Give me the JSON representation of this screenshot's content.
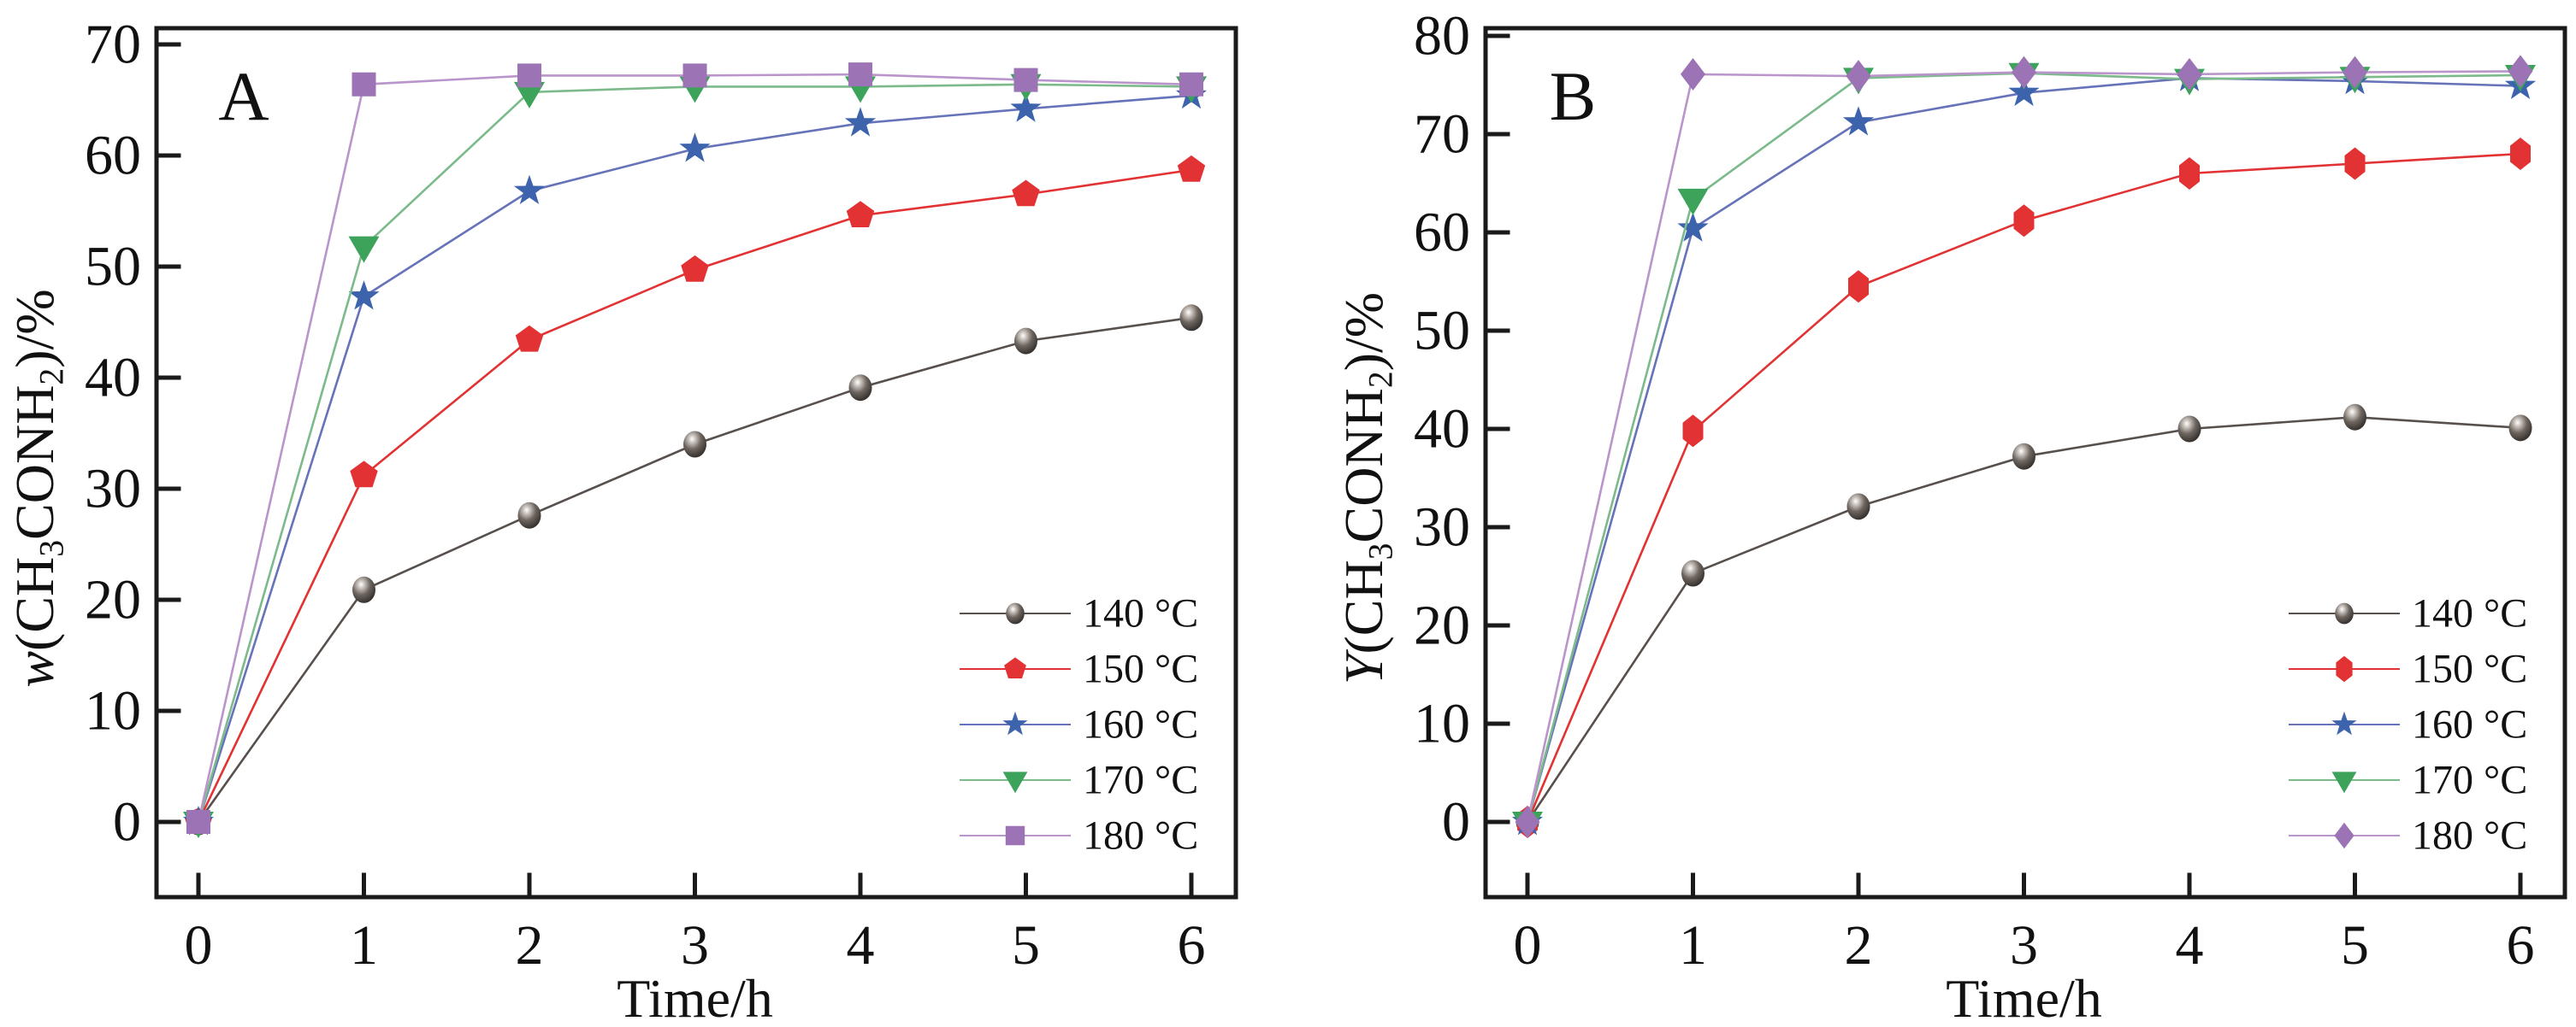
{
  "figure": {
    "background": "#ffffff",
    "frame_color": "#1a1a1a",
    "text_color": "#111111"
  },
  "chart_data": [
    {
      "type": "line",
      "panel_label": "A",
      "title": "",
      "xlabel": "Time/h",
      "ylabel": "w(CH₃CONH₂)/%",
      "ylabel_parts": [
        {
          "text": "w",
          "style": "italic"
        },
        {
          "text": "(CH"
        },
        {
          "text": "3",
          "script": "sub"
        },
        {
          "text": "CONH"
        },
        {
          "text": "2",
          "script": "sub"
        },
        {
          "text": ")/%"
        }
      ],
      "x": [
        0,
        1,
        2,
        3,
        4,
        5,
        6
      ],
      "xticks": [
        0,
        1,
        2,
        3,
        4,
        5,
        6
      ],
      "yticks": [
        0,
        10,
        20,
        30,
        40,
        50,
        60,
        70
      ],
      "xlim": [
        0,
        6
      ],
      "ylim": [
        0,
        70
      ],
      "grid": false,
      "legend_position": "lower right",
      "series": [
        {
          "name": "140 °C",
          "marker": "sphere",
          "color": "#3a3431",
          "line_color": "#57504c",
          "values": [
            0,
            20.9,
            27.6,
            34.0,
            39.1,
            43.3,
            45.4
          ]
        },
        {
          "name": "150 °C",
          "marker": "pentagon",
          "color": "#e23233",
          "line_color": "#e23233",
          "values": [
            0,
            31.2,
            43.4,
            49.7,
            54.6,
            56.5,
            58.7
          ]
        },
        {
          "name": "160 °C",
          "marker": "star",
          "color": "#3c63ac",
          "line_color": "#6673b9",
          "values": [
            0,
            47.3,
            56.8,
            60.6,
            62.9,
            64.2,
            65.4
          ]
        },
        {
          "name": "170 °C",
          "marker": "triangle-down",
          "color": "#3da35b",
          "line_color": "#7cba8b",
          "values": [
            0,
            51.8,
            65.7,
            66.2,
            66.2,
            66.4,
            66.2
          ]
        },
        {
          "name": "180 °C",
          "marker": "square",
          "color": "#9c73b5",
          "line_color": "#b995cb",
          "values": [
            0,
            66.4,
            67.2,
            67.2,
            67.3,
            66.8,
            66.4
          ]
        }
      ]
    },
    {
      "type": "line",
      "panel_label": "B",
      "title": "",
      "xlabel": "Time/h",
      "ylabel": "Y(CH₃CONH₂)/%",
      "ylabel_parts": [
        {
          "text": "Y",
          "style": "italic"
        },
        {
          "text": "(CH"
        },
        {
          "text": "3",
          "script": "sub"
        },
        {
          "text": "CONH"
        },
        {
          "text": "2",
          "script": "sub"
        },
        {
          "text": ")/%"
        }
      ],
      "x": [
        0,
        1,
        2,
        3,
        4,
        5,
        6
      ],
      "xticks": [
        0,
        1,
        2,
        3,
        4,
        5,
        6
      ],
      "yticks": [
        0,
        10,
        20,
        30,
        40,
        50,
        60,
        70,
        80
      ],
      "xlim": [
        0,
        6
      ],
      "ylim": [
        0,
        80
      ],
      "grid": false,
      "legend_position": "lower right",
      "series": [
        {
          "name": "140 °C",
          "marker": "sphere",
          "color": "#3a3431",
          "line_color": "#57504c",
          "values": [
            0,
            25.3,
            32.1,
            37.2,
            40.0,
            41.2,
            40.1
          ]
        },
        {
          "name": "150 °C",
          "marker": "hexagon",
          "color": "#e23233",
          "line_color": "#e23233",
          "values": [
            0,
            39.8,
            54.5,
            61.2,
            66.0,
            67.0,
            68.0
          ]
        },
        {
          "name": "160 °C",
          "marker": "star",
          "color": "#3c63ac",
          "line_color": "#6673b9",
          "values": [
            0,
            60.4,
            71.2,
            74.2,
            75.7,
            75.4,
            74.9
          ]
        },
        {
          "name": "170 °C",
          "marker": "triangle-down",
          "color": "#3da35b",
          "line_color": "#7cba8b",
          "values": [
            0,
            63.4,
            75.7,
            76.2,
            75.6,
            75.8,
            76.0
          ]
        },
        {
          "name": "180 °C",
          "marker": "diamond",
          "color": "#9c73b5",
          "line_color": "#b995cb",
          "values": [
            0,
            76.1,
            75.9,
            76.3,
            76.1,
            76.3,
            76.4
          ]
        }
      ]
    }
  ]
}
